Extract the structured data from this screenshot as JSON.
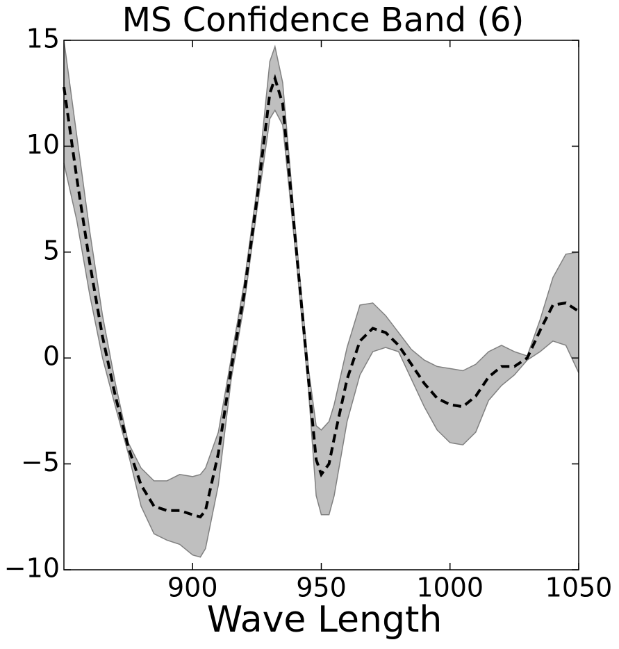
{
  "chart_data": {
    "type": "band-line",
    "title": "MS Confidence Band (6)",
    "x_label": "Wave Length",
    "x": [
      850,
      855,
      860,
      865,
      870,
      875,
      880,
      885,
      890,
      895,
      900,
      903,
      905,
      910,
      915,
      920,
      925,
      930,
      932,
      935,
      940,
      945,
      948,
      950,
      953,
      955,
      960,
      965,
      970,
      975,
      980,
      985,
      990,
      995,
      1000,
      1005,
      1010,
      1015,
      1020,
      1025,
      1030,
      1035,
      1040,
      1045,
      1050
    ],
    "series": [
      {
        "color": "#000000",
        "style": "dashed",
        "values": [
          12.8,
          8.5,
          4.5,
          1,
          -1.8,
          -4.2,
          -6,
          -7,
          -7.2,
          -7.2,
          -7.4,
          -7.5,
          -7.2,
          -4.5,
          -0.5,
          3,
          7.5,
          12.5,
          13.2,
          12,
          5.5,
          -1,
          -4.8,
          -5.5,
          -5,
          -3.8,
          -1,
          0.8,
          1.4,
          1.2,
          0.6,
          -0.3,
          -1.2,
          -1.9,
          -2.2,
          -2.3,
          -1.8,
          -0.9,
          -0.4,
          -0.4,
          0,
          1.3,
          2.5,
          2.6,
          2.2
        ]
      }
    ],
    "band": {
      "color": "#bfbfbf",
      "edge_color": "#808080",
      "upper": [
        15,
        10.5,
        6,
        2,
        -1.2,
        -4,
        -5.2,
        -5.8,
        -5.8,
        -5.5,
        -5.6,
        -5.5,
        -5.2,
        -3.5,
        0,
        3.5,
        8,
        14,
        14.7,
        13,
        6,
        -0.5,
        -3.2,
        -3.4,
        -3,
        -2.2,
        0.5,
        2.5,
        2.6,
        2,
        1.2,
        0.4,
        -0.1,
        -0.4,
        -0.5,
        -0.6,
        -0.3,
        0.3,
        0.6,
        0.3,
        0.1,
        1.8,
        3.8,
        4.9,
        5
      ],
      "lower": [
        9.2,
        6.5,
        3,
        0,
        -2.3,
        -4.5,
        -7,
        -8.3,
        -8.6,
        -8.8,
        -9.3,
        -9.4,
        -9,
        -6,
        -1,
        2.5,
        7,
        11.3,
        11.7,
        11,
        5,
        -1.5,
        -6.5,
        -7.4,
        -7.4,
        -6.5,
        -3,
        -0.8,
        0.3,
        0.5,
        0.3,
        -1,
        -2.3,
        -3.4,
        -4,
        -4.1,
        -3.5,
        -2,
        -1.3,
        -0.8,
        -0.1,
        0.3,
        0.8,
        0.6,
        -0.7
      ]
    },
    "xlim": [
      850,
      1050
    ],
    "xticks": [
      900,
      950,
      1000,
      1050
    ],
    "ylim": [
      -10,
      15
    ],
    "yticks": [
      {
        "value": -10,
        "label": "−10"
      },
      {
        "value": -5,
        "label": "−5"
      },
      0,
      5,
      10,
      15
    ],
    "grid": false
  }
}
